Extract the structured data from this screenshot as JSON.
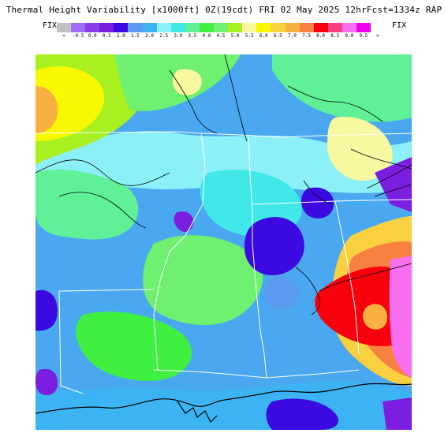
{
  "title": "Thermal Height Variability [x1000ft] 0Z(19cdt) FRI 02 May 2025 12hrFcst=1334z RAP",
  "legend": {
    "fix_left": "FIX",
    "fix_right": "FIX",
    "ticks": [
      "<",
      "-0.5",
      "0.0",
      "0.5",
      "1.0",
      "1.5",
      "2.0",
      "2.5",
      "3.0",
      "3.5",
      "4.0",
      "4.5",
      "5.0",
      "5.5",
      "6.0",
      "6.5",
      "7.0",
      "7.5",
      "8.0",
      "8.5",
      "9.0",
      "9.5",
      ">"
    ],
    "colors": [
      "#c0c0c0",
      "#a06cf0",
      "#8a3ce8",
      "#7a1fe0",
      "#3a0ae0",
      "#5a9af0",
      "#3cb4f4",
      "#8cf0f8",
      "#40e8e8",
      "#60f098",
      "#40f040",
      "#70f070",
      "#a8f020",
      "#f8f8a0",
      "#f8f800",
      "#f8d040",
      "#f8b040",
      "#f88040",
      "#f8000c",
      "#f84080",
      "#f870f0",
      "#f000f0",
      "#ffffff"
    ]
  },
  "map": {
    "base_color": "#4aa8f0",
    "regions": [
      {
        "name": "northwest-warm-zone",
        "color": "#f8f800"
      },
      {
        "name": "southeast-hot-zone",
        "color": "#f8000c"
      },
      {
        "name": "central-low-zone",
        "color": "#3a0ae0"
      },
      {
        "name": "gulf-zone",
        "color": "#3cb4f4"
      }
    ]
  }
}
